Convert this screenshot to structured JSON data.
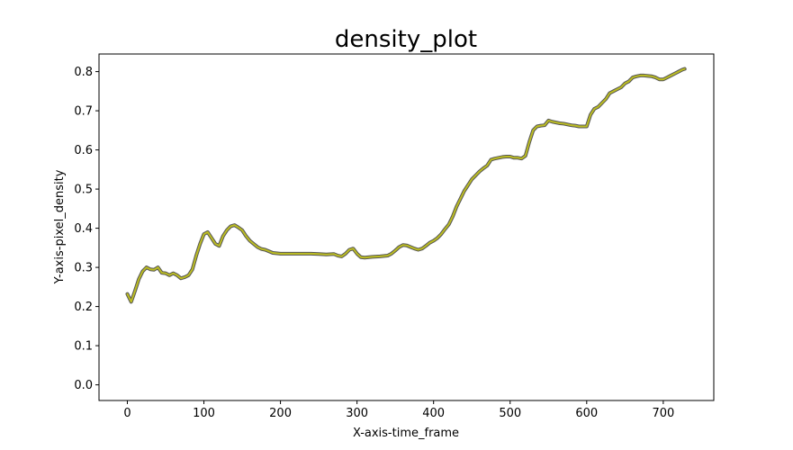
{
  "chart_data": {
    "type": "line",
    "title": "density_plot",
    "xlabel": "X-axis-time_frame",
    "ylabel": "Y-axis-pixel_density",
    "xlim": [
      -37,
      766
    ],
    "ylim": [
      -0.04,
      0.845
    ],
    "xticks": [
      0,
      100,
      200,
      300,
      400,
      500,
      600,
      700
    ],
    "yticks": [
      0.0,
      0.1,
      0.2,
      0.3,
      0.4,
      0.5,
      0.6,
      0.7,
      0.8
    ],
    "ytick_labels": [
      "0.0",
      "0.1",
      "0.2",
      "0.3",
      "0.4",
      "0.5",
      "0.6",
      "0.7",
      "0.8"
    ],
    "grid": false,
    "line_color": "#bcbd22",
    "marker_edge_color": "#555555",
    "series": [
      {
        "x": [
          0,
          5,
          10,
          15,
          20,
          25,
          30,
          35,
          40,
          45,
          50,
          55,
          60,
          65,
          70,
          75,
          80,
          85,
          90,
          95,
          100,
          105,
          110,
          115,
          120,
          125,
          130,
          135,
          140,
          145,
          150,
          155,
          160,
          165,
          170,
          175,
          180,
          190,
          200,
          210,
          220,
          230,
          240,
          250,
          260,
          270,
          275,
          280,
          285,
          290,
          295,
          300,
          305,
          310,
          320,
          330,
          340,
          345,
          350,
          355,
          360,
          365,
          370,
          375,
          380,
          385,
          390,
          395,
          400,
          405,
          410,
          415,
          420,
          425,
          430,
          435,
          440,
          445,
          450,
          455,
          460,
          465,
          470,
          475,
          480,
          485,
          490,
          495,
          500,
          505,
          510,
          515,
          520,
          525,
          530,
          535,
          540,
          545,
          550,
          555,
          560,
          565,
          570,
          575,
          580,
          585,
          590,
          595,
          600,
          605,
          610,
          615,
          620,
          625,
          630,
          635,
          640,
          645,
          650,
          655,
          660,
          665,
          670,
          675,
          680,
          685,
          690,
          695,
          700,
          705,
          710,
          715,
          720,
          725,
          728
        ],
        "y": [
          0.232,
          0.212,
          0.24,
          0.27,
          0.29,
          0.3,
          0.295,
          0.294,
          0.3,
          0.286,
          0.285,
          0.28,
          0.285,
          0.28,
          0.272,
          0.275,
          0.28,
          0.295,
          0.33,
          0.36,
          0.385,
          0.39,
          0.375,
          0.36,
          0.355,
          0.38,
          0.395,
          0.405,
          0.408,
          0.402,
          0.395,
          0.38,
          0.368,
          0.36,
          0.352,
          0.347,
          0.345,
          0.337,
          0.335,
          0.335,
          0.335,
          0.335,
          0.335,
          0.334,
          0.333,
          0.334,
          0.33,
          0.328,
          0.335,
          0.345,
          0.348,
          0.335,
          0.326,
          0.325,
          0.327,
          0.328,
          0.33,
          0.335,
          0.343,
          0.352,
          0.357,
          0.356,
          0.352,
          0.348,
          0.345,
          0.348,
          0.355,
          0.363,
          0.368,
          0.375,
          0.385,
          0.398,
          0.41,
          0.43,
          0.455,
          0.475,
          0.495,
          0.51,
          0.525,
          0.535,
          0.545,
          0.553,
          0.56,
          0.575,
          0.578,
          0.58,
          0.582,
          0.583,
          0.583,
          0.58,
          0.58,
          0.578,
          0.585,
          0.62,
          0.65,
          0.66,
          0.662,
          0.663,
          0.675,
          0.672,
          0.67,
          0.668,
          0.667,
          0.665,
          0.663,
          0.662,
          0.66,
          0.66,
          0.66,
          0.69,
          0.705,
          0.71,
          0.72,
          0.73,
          0.745,
          0.75,
          0.755,
          0.76,
          0.77,
          0.775,
          0.785,
          0.788,
          0.79,
          0.79,
          0.789,
          0.788,
          0.785,
          0.78,
          0.78,
          0.785,
          0.79,
          0.795,
          0.8,
          0.805,
          0.807
        ]
      }
    ]
  }
}
